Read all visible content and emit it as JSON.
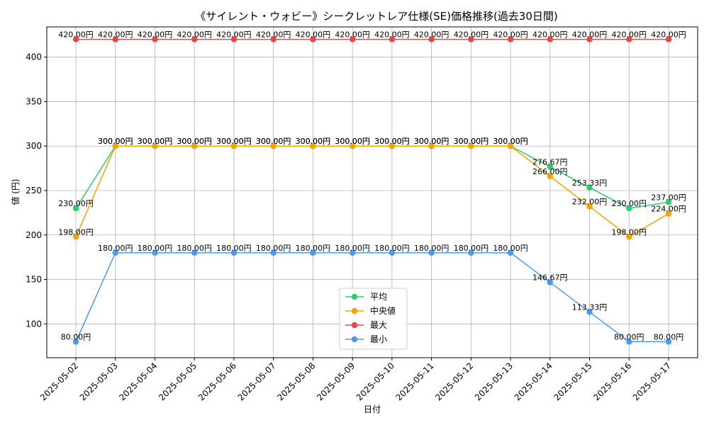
{
  "chart_data": {
    "type": "line",
    "title": "《サイレント・ウォビー》シークレットレア仕様(SE)価格推移(過去30日間)",
    "xlabel": "日付",
    "ylabel": "値 (円)",
    "ylim": [
      62,
      434
    ],
    "yticks": [
      100,
      150,
      200,
      250,
      300,
      350,
      400
    ],
    "grid": true,
    "legend_position": "lower-center",
    "value_suffix": "円",
    "categories": [
      "2025-05-02",
      "2025-05-03",
      "2025-05-04",
      "2025-05-05",
      "2025-05-06",
      "2025-05-07",
      "2025-05-08",
      "2025-05-09",
      "2025-05-10",
      "2025-05-11",
      "2025-05-12",
      "2025-05-13",
      "2025-05-14",
      "2025-05-15",
      "2025-05-16",
      "2025-05-17"
    ],
    "series": [
      {
        "name": "平均",
        "color": "#2ecc71",
        "values": [
          230,
          300,
          300,
          300,
          300,
          300,
          300,
          300,
          300,
          300,
          300,
          300,
          276.67,
          253.33,
          230,
          237
        ]
      },
      {
        "name": "中央値",
        "color": "#f5a300",
        "values": [
          198,
          300,
          300,
          300,
          300,
          300,
          300,
          300,
          300,
          300,
          300,
          300,
          266,
          232,
          198,
          224
        ]
      },
      {
        "name": "最大",
        "color": "#ee4444",
        "values": [
          420,
          420,
          420,
          420,
          420,
          420,
          420,
          420,
          420,
          420,
          420,
          420,
          420,
          420,
          420,
          420
        ]
      },
      {
        "name": "最小",
        "color": "#4a9af5",
        "values": [
          80,
          180,
          180,
          180,
          180,
          180,
          180,
          180,
          180,
          180,
          180,
          180,
          146.67,
          113.33,
          80,
          80
        ]
      }
    ]
  }
}
